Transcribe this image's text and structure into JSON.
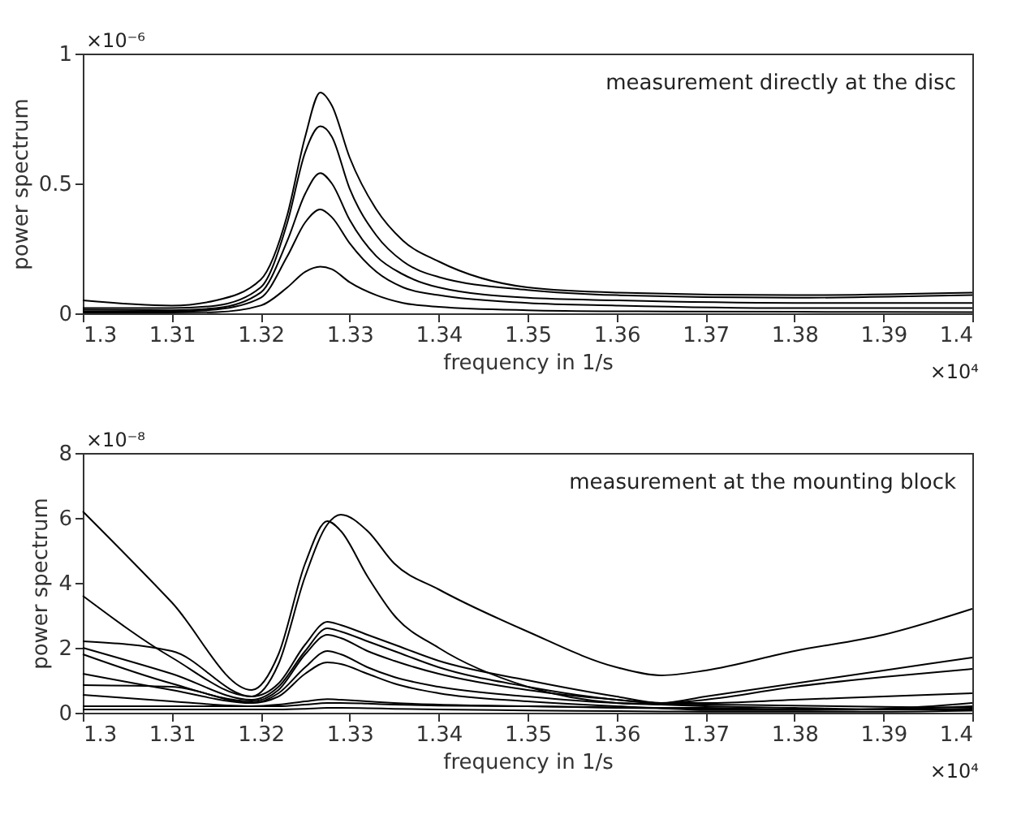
{
  "chart_data": [
    {
      "type": "line",
      "xlabel": "frequency in 1/s",
      "ylabel": "power spectrum",
      "annotations": [
        "measurement directly at the disc",
        "×10⁻⁶",
        "×10⁴"
      ],
      "xlim": [
        1.3,
        1.4
      ],
      "xticks": [
        1.3,
        1.31,
        1.32,
        1.33,
        1.34,
        1.35,
        1.36,
        1.37,
        1.38,
        1.39,
        1.4
      ],
      "ylim": [
        0,
        1
      ],
      "yticks": [
        0,
        0.5,
        1
      ],
      "grid": false,
      "legend": false,
      "marker": "none",
      "line_style": "solid",
      "x": [
        1.3,
        1.31,
        1.315,
        1.32,
        1.323,
        1.325,
        1.3267,
        1.328,
        1.33,
        1.333,
        1.336,
        1.34,
        1.35,
        1.36,
        1.38,
        1.4
      ],
      "series": [
        {
          "color": "#000000",
          "values": [
            0.05,
            0.03,
            0.05,
            0.13,
            0.38,
            0.68,
            0.85,
            0.8,
            0.6,
            0.4,
            0.28,
            0.2,
            0.1,
            0.08,
            0.07,
            0.08
          ]
        },
        {
          "color": "#000000",
          "values": [
            0.02,
            0.02,
            0.03,
            0.1,
            0.35,
            0.62,
            0.72,
            0.68,
            0.48,
            0.3,
            0.2,
            0.14,
            0.09,
            0.07,
            0.06,
            0.07
          ]
        },
        {
          "color": "#000000",
          "values": [
            0.014,
            0.012,
            0.02,
            0.08,
            0.28,
            0.46,
            0.54,
            0.5,
            0.36,
            0.22,
            0.15,
            0.1,
            0.06,
            0.05,
            0.04,
            0.04
          ]
        },
        {
          "color": "#000000",
          "values": [
            0.008,
            0.007,
            0.015,
            0.06,
            0.22,
            0.35,
            0.4,
            0.37,
            0.27,
            0.16,
            0.1,
            0.07,
            0.04,
            0.03,
            0.02,
            0.02
          ]
        },
        {
          "color": "#000000",
          "values": [
            0.003,
            0.003,
            0.005,
            0.03,
            0.1,
            0.16,
            0.18,
            0.17,
            0.12,
            0.07,
            0.04,
            0.025,
            0.012,
            0.008,
            0.006,
            0.005
          ]
        }
      ]
    },
    {
      "type": "line",
      "xlabel": "frequency in 1/s",
      "ylabel": "power spectrum",
      "annotations": [
        "measurement at the mounting block",
        "×10⁻⁸",
        "×10⁴"
      ],
      "xlim": [
        1.3,
        1.4
      ],
      "xticks": [
        1.3,
        1.31,
        1.32,
        1.33,
        1.34,
        1.35,
        1.36,
        1.37,
        1.38,
        1.39,
        1.4
      ],
      "ylim": [
        0,
        8
      ],
      "yticks": [
        0,
        2,
        4,
        6,
        8
      ],
      "grid": false,
      "legend": false,
      "marker": "none",
      "line_style": "solid",
      "x": [
        1.3,
        1.31,
        1.319,
        1.322,
        1.325,
        1.3275,
        1.329,
        1.332,
        1.335,
        1.34,
        1.35,
        1.36,
        1.365,
        1.37,
        1.38,
        1.39,
        1.4
      ],
      "series": [
        {
          "color": "#000000",
          "values": [
            6.2,
            3.4,
            0.7,
            1.8,
            4.6,
            5.9,
            5.6,
            4.2,
            3.0,
            2.0,
            0.8,
            0.3,
            0.25,
            0.2,
            0.15,
            0.1,
            0.1
          ]
        },
        {
          "color": "#000000",
          "values": [
            3.6,
            1.7,
            0.5,
            1.5,
            4.2,
            5.8,
            6.1,
            5.6,
            4.6,
            3.8,
            2.5,
            1.4,
            1.15,
            1.3,
            1.9,
            2.4,
            3.2
          ]
        },
        {
          "color": "#000000",
          "values": [
            2.2,
            1.9,
            0.5,
            0.9,
            2.1,
            2.8,
            2.7,
            2.4,
            2.1,
            1.6,
            1.0,
            0.5,
            0.3,
            0.5,
            0.9,
            1.3,
            1.7
          ]
        },
        {
          "color": "#000000",
          "values": [
            2.0,
            1.2,
            0.4,
            0.8,
            1.9,
            2.6,
            2.5,
            2.2,
            1.9,
            1.4,
            0.8,
            0.4,
            0.3,
            0.4,
            0.8,
            1.1,
            1.35
          ]
        },
        {
          "color": "#000000",
          "values": [
            1.8,
            0.9,
            0.35,
            0.7,
            1.8,
            2.4,
            2.3,
            1.9,
            1.6,
            1.2,
            0.7,
            0.4,
            0.3,
            0.3,
            0.4,
            0.5,
            0.6
          ]
        },
        {
          "color": "#000000",
          "values": [
            1.2,
            0.7,
            0.3,
            0.6,
            1.4,
            1.9,
            1.8,
            1.4,
            1.1,
            0.8,
            0.5,
            0.3,
            0.27,
            0.25,
            0.22,
            0.18,
            0.15
          ]
        },
        {
          "color": "#000000",
          "values": [
            0.85,
            0.8,
            0.3,
            0.5,
            1.2,
            1.55,
            1.5,
            1.2,
            0.9,
            0.6,
            0.35,
            0.2,
            0.15,
            0.15,
            0.1,
            0.1,
            0.1
          ]
        },
        {
          "color": "#000000",
          "values": [
            0.55,
            0.35,
            0.2,
            0.25,
            0.35,
            0.42,
            0.4,
            0.35,
            0.3,
            0.25,
            0.2,
            0.15,
            0.14,
            0.12,
            0.1,
            0.11,
            0.2
          ]
        },
        {
          "color": "#000000",
          "values": [
            0.2,
            0.2,
            0.2,
            0.2,
            0.25,
            0.3,
            0.3,
            0.28,
            0.25,
            0.22,
            0.2,
            0.16,
            0.14,
            0.08,
            0.08,
            0.12,
            0.3
          ]
        },
        {
          "color": "#000000",
          "values": [
            0.1,
            0.1,
            0.1,
            0.1,
            0.12,
            0.15,
            0.15,
            0.14,
            0.12,
            0.1,
            0.07,
            0.05,
            0.04,
            0.03,
            0.03,
            0.03,
            0.06
          ]
        }
      ]
    }
  ]
}
